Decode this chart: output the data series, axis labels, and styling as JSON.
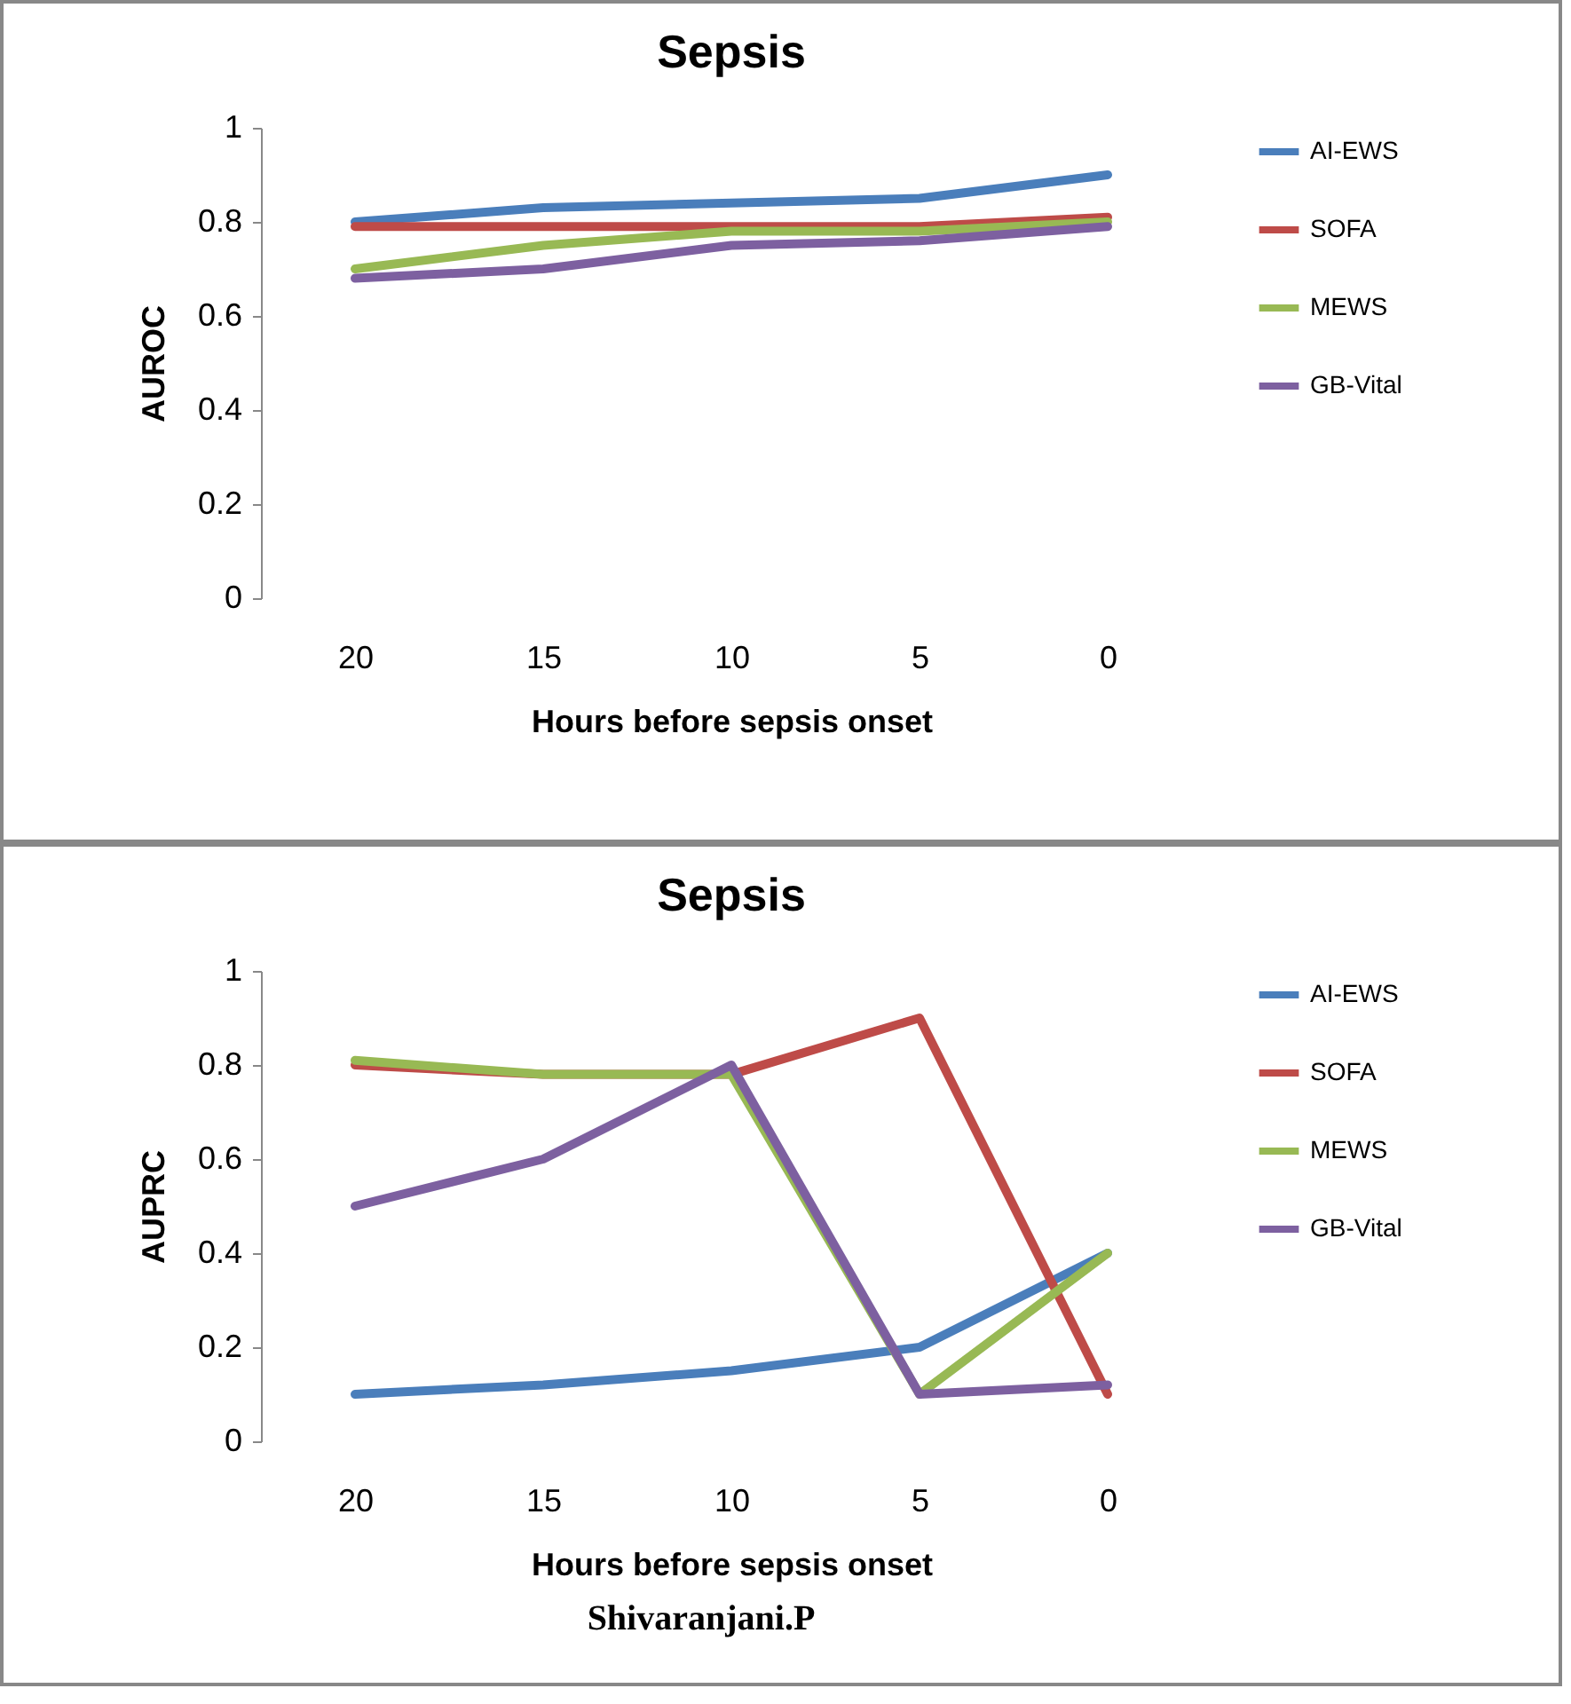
{
  "chart_data": [
    {
      "type": "line",
      "title": "Sepsis",
      "xlabel": "Hours before sepsis onset",
      "ylabel": "AUROC",
      "categories": [
        "20",
        "15",
        "10",
        "5",
        "0"
      ],
      "ylim": [
        0,
        1
      ],
      "yticks": [
        0,
        0.2,
        0.4,
        0.6,
        0.8,
        1
      ],
      "grid": false,
      "legend": "right",
      "series": [
        {
          "name": "AI-EWS",
          "color": "#4a7ebb",
          "values": [
            0.8,
            0.83,
            0.84,
            0.85,
            0.9
          ]
        },
        {
          "name": "SOFA",
          "color": "#be4b48",
          "values": [
            0.79,
            0.79,
            0.79,
            0.79,
            0.81
          ]
        },
        {
          "name": "MEWS",
          "color": "#98b954",
          "values": [
            0.7,
            0.75,
            0.78,
            0.78,
            0.8
          ]
        },
        {
          "name": "GB-Vital",
          "color": "#7d60a0",
          "values": [
            0.68,
            0.7,
            0.75,
            0.76,
            0.79
          ]
        }
      ]
    },
    {
      "type": "line",
      "title": "Sepsis",
      "xlabel": "Hours before sepsis onset",
      "ylabel": "AUPRC",
      "categories": [
        "20",
        "15",
        "10",
        "5",
        "0"
      ],
      "ylim": [
        0,
        1
      ],
      "yticks": [
        0,
        0.2,
        0.4,
        0.6,
        0.8,
        1
      ],
      "grid": false,
      "legend": "right",
      "annotations": [
        "Shivaranjani.P"
      ],
      "series": [
        {
          "name": "AI-EWS",
          "color": "#4a7ebb",
          "values": [
            0.1,
            0.12,
            0.15,
            0.2,
            0.4
          ]
        },
        {
          "name": "SOFA",
          "color": "#be4b48",
          "values": [
            0.8,
            0.78,
            0.78,
            0.9,
            0.1
          ]
        },
        {
          "name": "MEWS",
          "color": "#98b954",
          "values": [
            0.81,
            0.78,
            0.78,
            0.1,
            0.4
          ]
        },
        {
          "name": "GB-Vital",
          "color": "#7d60a0",
          "values": [
            0.5,
            0.6,
            0.8,
            0.1,
            0.12
          ]
        }
      ]
    }
  ]
}
